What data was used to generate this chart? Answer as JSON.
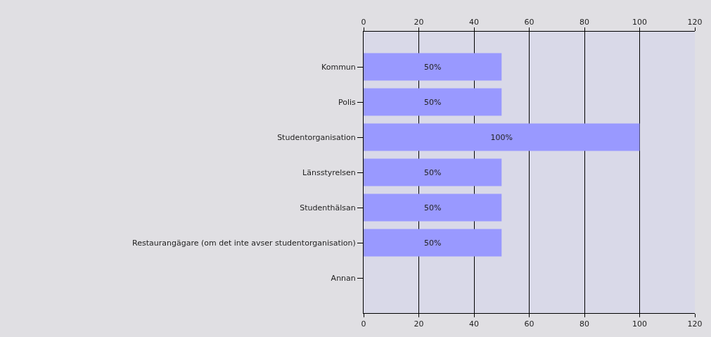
{
  "chart_data": {
    "type": "bar",
    "orientation": "horizontal",
    "categories": [
      "Kommun",
      "Polis",
      "Studentorganisation",
      "Länsstyrelsen",
      "Studenthälsan",
      "Restaurangägare (om det inte avser studentorganisation)",
      "Annan"
    ],
    "values": [
      50,
      50,
      100,
      50,
      50,
      50,
      null
    ],
    "value_labels": [
      "50%",
      "50%",
      "100%",
      "50%",
      "50%",
      "50%",
      null
    ],
    "color": "#9999ff",
    "xlim": [
      0,
      120
    ],
    "xticks": [
      0,
      20,
      40,
      60,
      80,
      100,
      120
    ],
    "x2lim": [
      0,
      120
    ],
    "x2ticks": [
      0,
      20,
      40,
      60,
      80,
      100,
      120
    ],
    "grid": "x"
  }
}
